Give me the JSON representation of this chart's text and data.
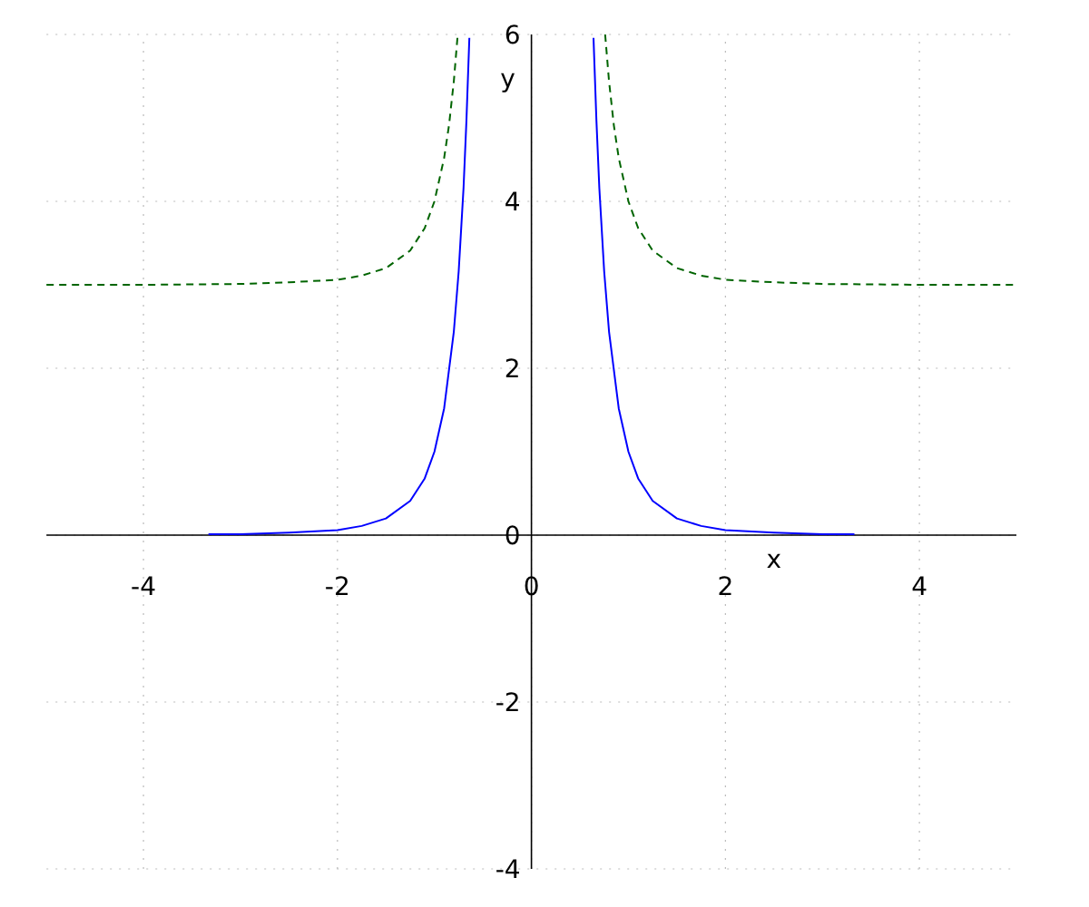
{
  "chart_data": {
    "type": "line",
    "xlabel": "x",
    "ylabel": "y",
    "xlim": [
      -5,
      5
    ],
    "ylim": [
      -4,
      6
    ],
    "xticks": [
      -4,
      -2,
      0,
      2,
      4
    ],
    "yticks": [
      -4,
      -2,
      0,
      2,
      4,
      6
    ],
    "grid": true,
    "marker": "none",
    "series": [
      {
        "color": "#0000ff",
        "line_style": "solid",
        "x": [
          -3.33,
          -3,
          -2.5,
          -2,
          -1.75,
          -1.5,
          -1.25,
          -1.1,
          -1,
          -0.9,
          -0.8,
          -0.75,
          -0.7,
          -0.67,
          -0.64,
          0,
          0.64,
          0.67,
          0.7,
          0.75,
          0.8,
          0.9,
          1,
          1.1,
          1.25,
          1.5,
          1.75,
          2,
          2.5,
          3,
          3.33
        ],
        "values": [
          0.01,
          0.01,
          0.03,
          0.06,
          0.11,
          0.2,
          0.41,
          0.68,
          1,
          1.52,
          2.44,
          3.16,
          4.16,
          4.97,
          5.96,
          null,
          5.96,
          4.97,
          4.16,
          3.16,
          2.44,
          1.52,
          1,
          0.68,
          0.41,
          0.2,
          0.11,
          0.06,
          0.03,
          0.01,
          0.01
        ]
      },
      {
        "color": "#006400",
        "line_style": "dashed",
        "x": [
          -5,
          -4,
          -3,
          -2.5,
          -2,
          -1.75,
          -1.5,
          -1.25,
          -1.1,
          -1,
          -0.9,
          -0.85,
          -0.8,
          -0.76,
          0,
          0.76,
          0.8,
          0.85,
          0.9,
          1,
          1.1,
          1.25,
          1.5,
          1.75,
          2,
          2.5,
          3,
          4,
          5
        ],
        "values": [
          3,
          3,
          3.01,
          3.03,
          3.06,
          3.11,
          3.2,
          3.41,
          3.68,
          4,
          4.52,
          4.91,
          5.44,
          6,
          null,
          6,
          5.44,
          4.91,
          4.52,
          4,
          3.68,
          3.41,
          3.2,
          3.11,
          3.06,
          3.03,
          3.01,
          3,
          3
        ]
      }
    ]
  }
}
